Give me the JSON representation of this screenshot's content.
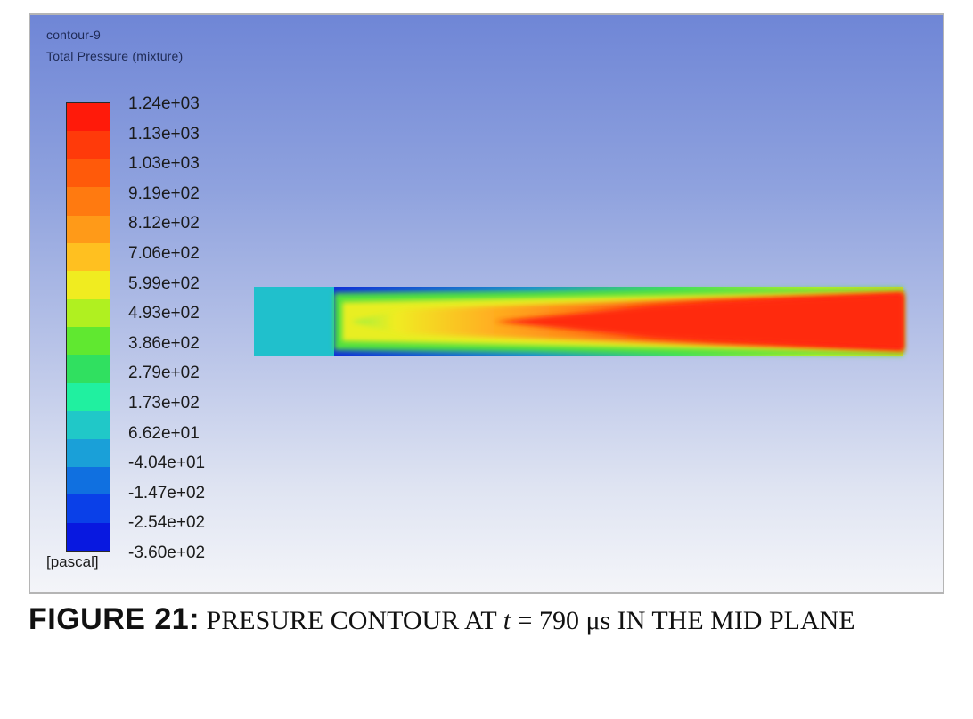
{
  "plot": {
    "title_line1": "contour-9",
    "title_line2": "Total Pressure (mixture)",
    "units": "[pascal]"
  },
  "colorbar": {
    "labels": [
      "1.24e+03",
      "1.13e+03",
      "1.03e+03",
      "9.19e+02",
      "8.12e+02",
      "7.06e+02",
      "5.99e+02",
      "4.93e+02",
      "3.86e+02",
      "2.79e+02",
      "1.73e+02",
      "6.62e+01",
      "-4.04e+01",
      "-1.47e+02",
      "-2.54e+02",
      "-3.60e+02"
    ],
    "colors": [
      "#ff1a0a",
      "#ff3a0a",
      "#ff5a0a",
      "#ff7a10",
      "#ff9a18",
      "#ffc020",
      "#f0ec20",
      "#b0f020",
      "#60e830",
      "#30e060",
      "#20f0a0",
      "#20c8c8",
      "#1aa0d8",
      "#1070e0",
      "#0a40e8",
      "#0818e0"
    ]
  },
  "caption": {
    "figure_label": "FIGURE 21:",
    "text_before_var": "PRESURE CONTOUR AT",
    "variable": "t",
    "text_after_var": "= 790 μs IN THE MID PLANE"
  }
}
